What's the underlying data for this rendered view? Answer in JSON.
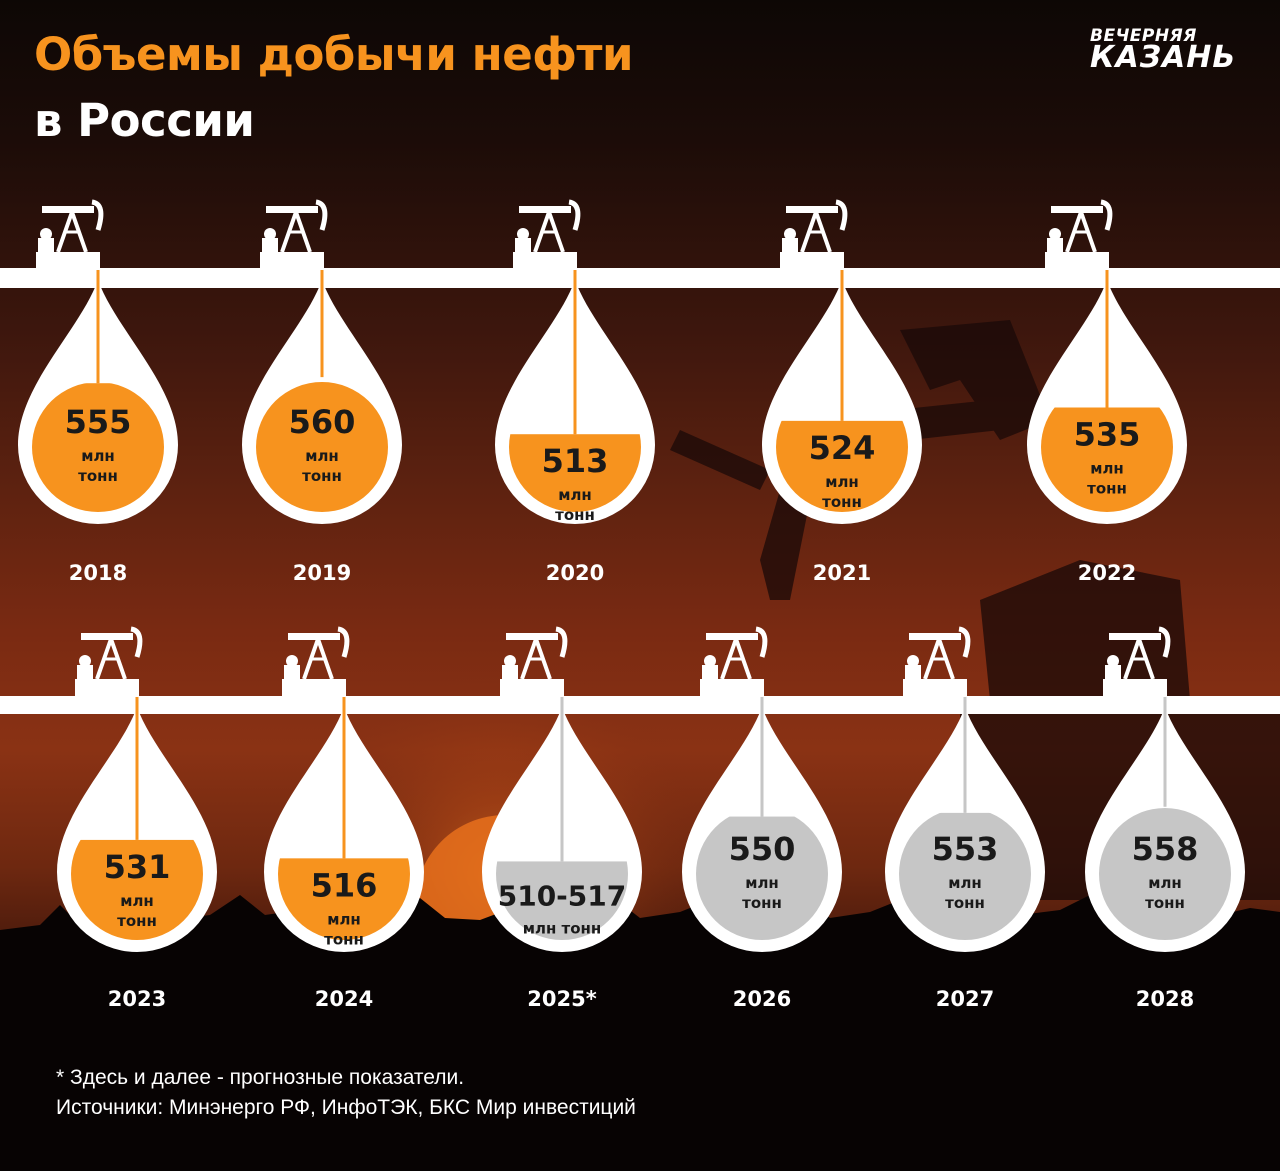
{
  "header": {
    "title_line1": "Объемы добычи нефти",
    "title_line2": "в России",
    "logo_line1": "ВЕЧЕРНЯЯ",
    "logo_line2": "КАЗАНЬ"
  },
  "colors": {
    "actual": "#f7931e",
    "forecast": "#c6c6c6",
    "drop": "#ffffff",
    "title_accent": "#f7931e"
  },
  "chart_data": {
    "type": "bar",
    "title": "Объемы добычи нефти в России",
    "unit": "млн тонн",
    "categories": [
      "2018",
      "2019",
      "2020",
      "2021",
      "2022",
      "2023",
      "2024",
      "2025*",
      "2026",
      "2027",
      "2028"
    ],
    "values": [
      555,
      560,
      513,
      524,
      535,
      531,
      516,
      [
        510,
        517
      ],
      550,
      553,
      558
    ],
    "value_labels": [
      "555",
      "560",
      "513",
      "524",
      "535",
      "531",
      "516",
      "510-517",
      "550",
      "553",
      "558"
    ],
    "unit_label_line1": "млн",
    "unit_label_line2": "тонн",
    "unit_label_inline": "млн тонн",
    "forecast": [
      false,
      false,
      false,
      false,
      false,
      false,
      false,
      true,
      true,
      true,
      true
    ]
  },
  "footnote": {
    "line1": "* Здесь и далее - прогнозные показатели.",
    "line2": "Источники: Минэнерго РФ, ИнфоТЭК, БКС Мир инвестиций"
  }
}
